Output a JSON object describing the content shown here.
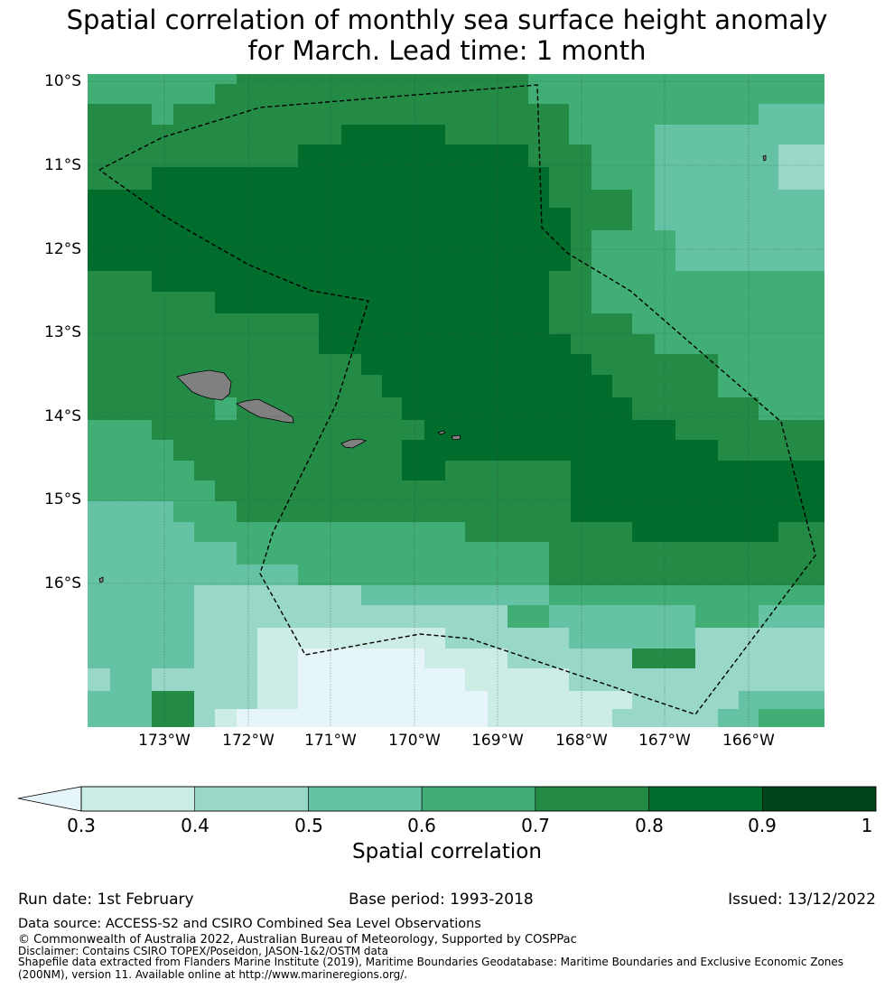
{
  "title": {
    "line1": "Spatial correlation of monthly sea surface height anomaly",
    "line2": "for March. Lead time: 1 month"
  },
  "map": {
    "lat_labels": [
      "10°S",
      "11°S",
      "12°S",
      "13°S",
      "14°S",
      "15°S",
      "16°S"
    ],
    "lon_labels": [
      "173°W",
      "172°W",
      "171°W",
      "170°W",
      "169°W",
      "168°W",
      "167°W",
      "166°W"
    ],
    "lon_range": [
      -173.9,
      -165.1
    ],
    "lat_range": [
      -17.7,
      -10.1
    ],
    "land_color": "#808080"
  },
  "colorbar": {
    "label": "Spatial correlation",
    "ticks": [
      "0.3",
      "0.4",
      "0.5",
      "0.6",
      "0.7",
      "0.8",
      "0.9",
      "1"
    ],
    "colors": [
      "#ccece6",
      "#99d8c9",
      "#66c2a4",
      "#41ae76",
      "#238b45",
      "#006d2c",
      "#00441b"
    ],
    "under_color": "#e5f5f9"
  },
  "footer": {
    "run_date": "Run date: 1st February",
    "base_period": "Base period: 1993-2018",
    "issued": "Issued: 13/12/2022",
    "data_source": "Data source: ACCESS-S2 and CSIRO Combined Sea Level Observations",
    "copyright": "© Commonwealth of Australia 2022, Australian Bureau of Meteorology, Supported by COSPPac",
    "disclaimer": "Disclaimer: Contains CSIRO TOPEX/Poseidon, JASON-1&2/OSTM data",
    "shapefile": "Shapefile data extracted from Flanders Marine Institute (2019), Maritime Boundaries Geodatabase: Maritime Boundaries and Exclusive Economic Zones (200NM), version 11. Available online at http://www.marineregions.org/."
  }
}
